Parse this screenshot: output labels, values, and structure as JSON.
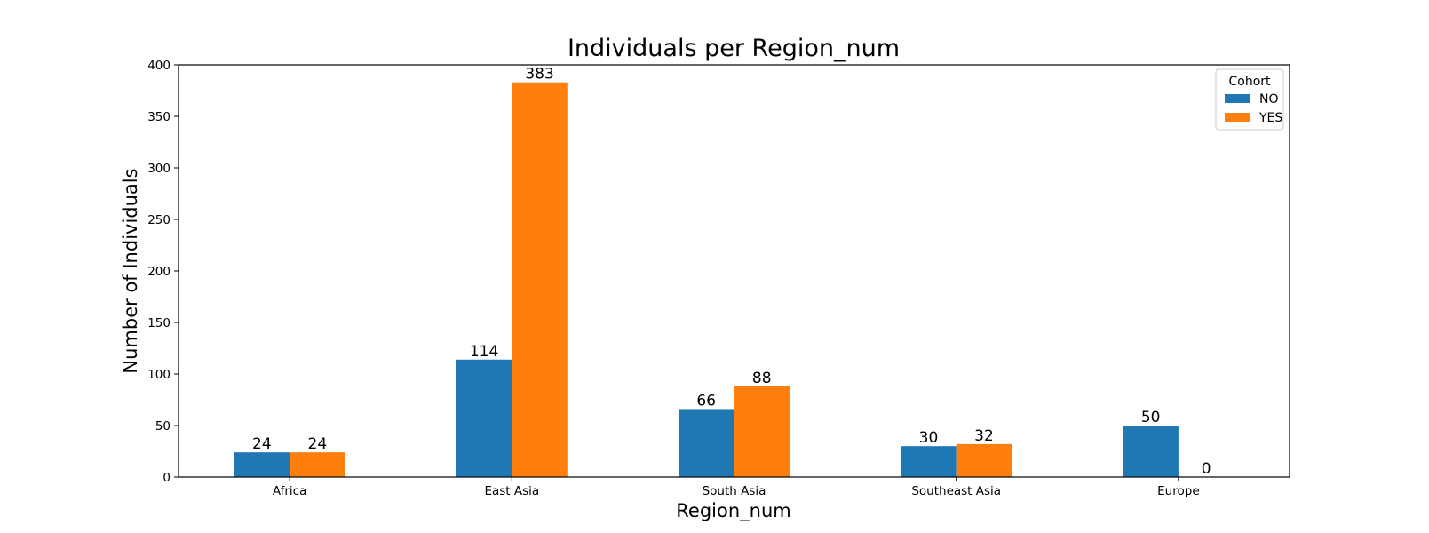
{
  "chart_data": {
    "type": "bar",
    "title": "Individuals per Region_num",
    "xlabel": "Region_num",
    "ylabel": "Number of Individuals",
    "categories": [
      "Africa",
      "East Asia",
      "South Asia",
      "Southeast Asia",
      "Europe"
    ],
    "series": [
      {
        "name": "NO",
        "values": [
          24,
          114,
          66,
          30,
          50
        ],
        "color": "#1f77b4"
      },
      {
        "name": "YES",
        "values": [
          24,
          383,
          88,
          32,
          0
        ],
        "color": "#ff7f0e"
      }
    ],
    "ylim": [
      0,
      400
    ],
    "yticks": [
      0,
      50,
      100,
      150,
      200,
      250,
      300,
      350,
      400
    ],
    "legend": {
      "title": "Cohort",
      "placement": "top-right"
    },
    "grid": false,
    "data_labels": true
  }
}
